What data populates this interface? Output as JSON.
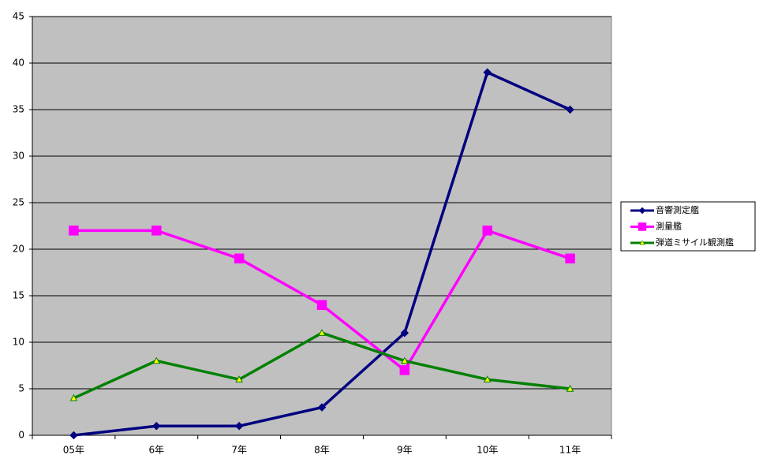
{
  "chart_data": {
    "type": "line",
    "categories": [
      "05年",
      "6年",
      "7年",
      "8年",
      "9年",
      "10年",
      "11年"
    ],
    "series": [
      {
        "name": "音響測定艦",
        "color": "#000080",
        "marker": "diamond",
        "marker_color": "#000080",
        "values": [
          0,
          1,
          1,
          3,
          11,
          39,
          35
        ]
      },
      {
        "name": "測量艦",
        "color": "#ff00ff",
        "marker": "square",
        "marker_color": "#ff00ff",
        "values": [
          22,
          22,
          19,
          14,
          7,
          22,
          19
        ]
      },
      {
        "name": "弾道ミサイル観測艦",
        "color": "#008000",
        "marker": "triangle",
        "marker_color": "#ffff00",
        "values": [
          4,
          8,
          6,
          11,
          8,
          6,
          5
        ]
      }
    ],
    "ylim": [
      0,
      45
    ],
    "yticks": [
      0,
      5,
      10,
      15,
      20,
      25,
      30,
      35,
      40,
      45
    ],
    "grid": true,
    "plot_background": "#c0c0c0",
    "legend": "right"
  }
}
